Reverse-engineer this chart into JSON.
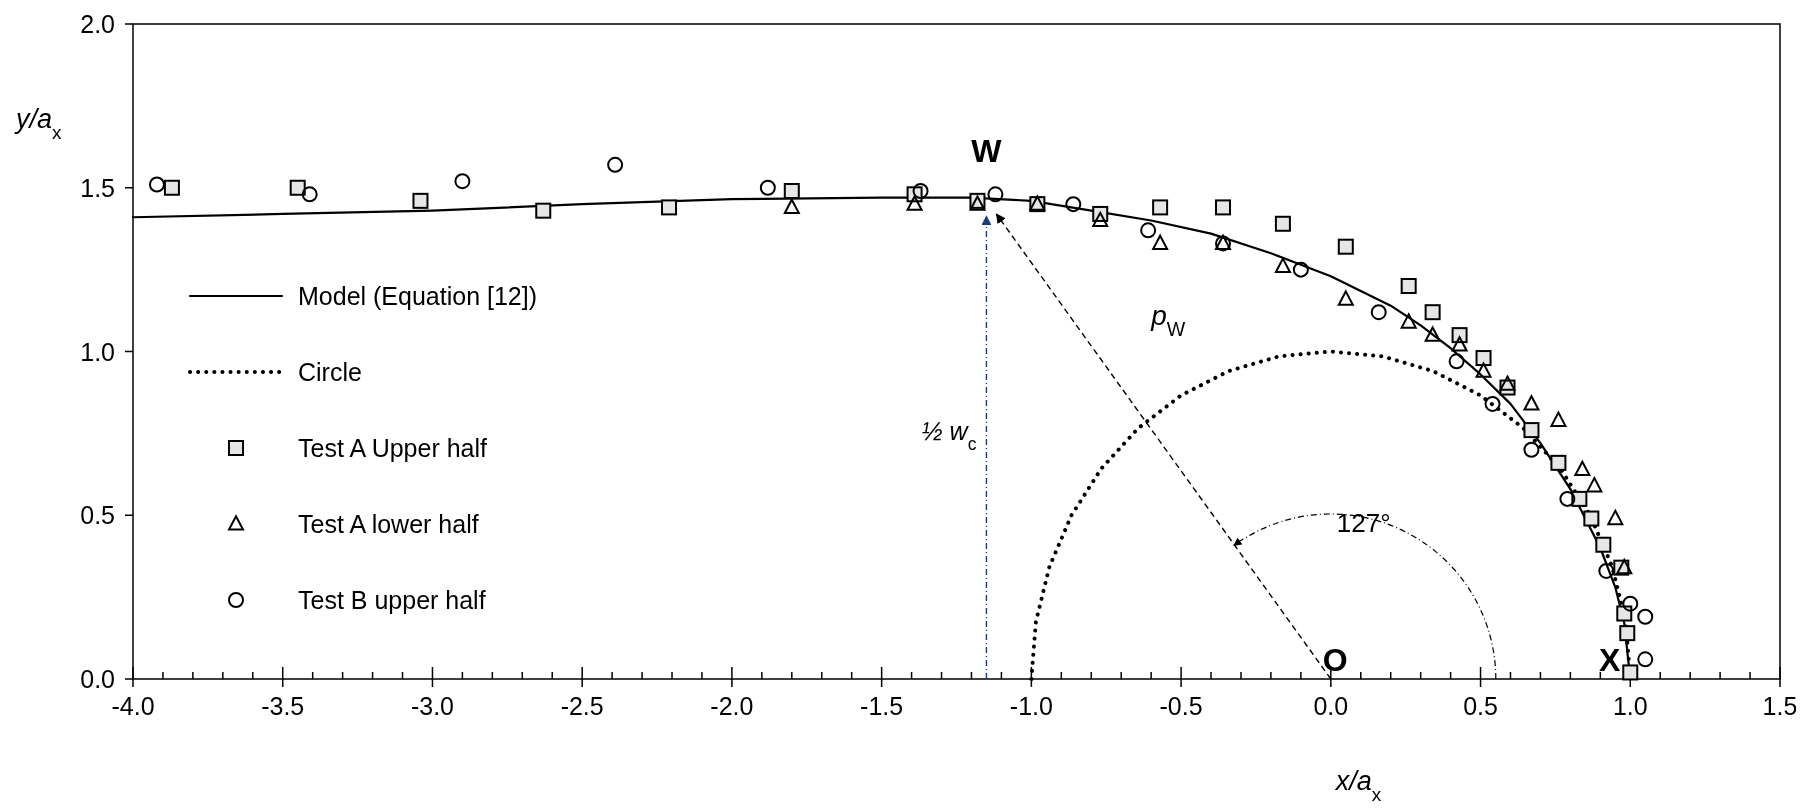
{
  "chart_data": {
    "type": "scatter",
    "xlabel": "x/a$_{x}$",
    "ylabel": "y/a$_{x}$",
    "xlim": [
      -4,
      1.5
    ],
    "ylim": [
      0,
      2
    ],
    "xticks": [
      {
        "value": -4,
        "label": "-4.0"
      },
      {
        "value": -3.9,
        "label": null
      },
      {
        "value": -3.8,
        "label": null
      },
      {
        "value": -3.7,
        "label": null
      },
      {
        "value": -3.6,
        "label": null
      },
      {
        "value": -3.5,
        "label": "-3.5"
      },
      {
        "value": -3.4,
        "label": null
      },
      {
        "value": -3.3,
        "label": null
      },
      {
        "value": -3.2,
        "label": null
      },
      {
        "value": -3.1,
        "label": null
      },
      {
        "value": -3,
        "label": "-3.0"
      },
      {
        "value": -2.9,
        "label": null
      },
      {
        "value": -2.8,
        "label": null
      },
      {
        "value": -2.7,
        "label": null
      },
      {
        "value": -2.6,
        "label": null
      },
      {
        "value": -2.5,
        "label": "-2.5"
      },
      {
        "value": -2.4,
        "label": null
      },
      {
        "value": -2.3,
        "label": null
      },
      {
        "value": -2.2,
        "label": null
      },
      {
        "value": -2.1,
        "label": null
      },
      {
        "value": -2,
        "label": "-2.0"
      },
      {
        "value": -1.9,
        "label": null
      },
      {
        "value": -1.8,
        "label": null
      },
      {
        "value": -1.7,
        "label": null
      },
      {
        "value": -1.6,
        "label": null
      },
      {
        "value": -1.5,
        "label": "-1.5"
      },
      {
        "value": -1.4,
        "label": null
      },
      {
        "value": -1.3,
        "label": null
      },
      {
        "value": -1.2,
        "label": null
      },
      {
        "value": -1.1,
        "label": null
      },
      {
        "value": -1,
        "label": "-1.0"
      },
      {
        "value": -0.9,
        "label": null
      },
      {
        "value": -0.8,
        "label": null
      },
      {
        "value": -0.7,
        "label": null
      },
      {
        "value": -0.6,
        "label": null
      },
      {
        "value": -0.5,
        "label": "-0.5"
      },
      {
        "value": -0.4,
        "label": null
      },
      {
        "value": -0.3,
        "label": null
      },
      {
        "value": -0.2,
        "label": null
      },
      {
        "value": -0.1,
        "label": null
      },
      {
        "value": 0,
        "label": "0.0"
      },
      {
        "value": 0.1,
        "label": null
      },
      {
        "value": 0.2,
        "label": null
      },
      {
        "value": 0.3,
        "label": null
      },
      {
        "value": 0.4,
        "label": null
      },
      {
        "value": 0.5,
        "label": "0.5"
      },
      {
        "value": 0.6,
        "label": null
      },
      {
        "value": 0.7,
        "label": null
      },
      {
        "value": 0.8,
        "label": null
      },
      {
        "value": 0.9,
        "label": null
      },
      {
        "value": 1,
        "label": "1.0"
      },
      {
        "value": 1.1,
        "label": null
      },
      {
        "value": 1.2,
        "label": null
      },
      {
        "value": 1.3,
        "label": null
      },
      {
        "value": 1.4,
        "label": null
      },
      {
        "value": 1.5,
        "label": "1.5"
      }
    ],
    "yticks": [
      {
        "value": 0,
        "label": "0.0"
      },
      {
        "value": 0.5,
        "label": "0.5"
      },
      {
        "value": 1,
        "label": "1.0"
      },
      {
        "value": 1.5,
        "label": "1.5"
      },
      {
        "value": 2,
        "label": "2.0"
      }
    ],
    "grid": false,
    "legend": "left",
    "series": [
      {
        "name": "Model (Equation [12])",
        "type": "line",
        "line_style": "solid",
        "marker": "none",
        "color": "#000000",
        "x": [
          -4,
          -3.5,
          -3,
          -2.5,
          -2,
          -1.5,
          -1.2,
          -1,
          -0.8,
          -0.6,
          -0.4,
          -0.2,
          0,
          0.2,
          0.3,
          0.4,
          0.5,
          0.6,
          0.7,
          0.8,
          0.9,
          0.95,
          0.98,
          1
        ],
        "values": [
          1.41,
          1.42,
          1.43,
          1.45,
          1.465,
          1.47,
          1.47,
          1.46,
          1.43,
          1.4,
          1.36,
          1.3,
          1.23,
          1.14,
          1.08,
          1.01,
          0.93,
          0.84,
          0.72,
          0.58,
          0.4,
          0.28,
          0.17,
          0
        ]
      },
      {
        "name": "Circle",
        "type": "line",
        "line_style": "dotted",
        "marker": "none",
        "color": "#000000",
        "x": [
          -1,
          -0.985,
          -0.94,
          -0.866,
          -0.766,
          -0.643,
          -0.5,
          -0.342,
          -0.174,
          0,
          0.174,
          0.342,
          0.5,
          0.643,
          0.766,
          0.866,
          0.94,
          0.985,
          1
        ],
        "values": [
          0,
          0.174,
          0.342,
          0.5,
          0.643,
          0.766,
          0.866,
          0.94,
          0.985,
          1,
          0.985,
          0.94,
          0.866,
          0.766,
          0.643,
          0.5,
          0.342,
          0.174,
          0
        ]
      },
      {
        "name": "Test A Upper half",
        "marker": "square",
        "color": "#000000",
        "x": [
          -3.87,
          -3.45,
          -3.04,
          -2.63,
          -2.21,
          -1.8,
          -1.39,
          -1.18,
          -0.98,
          -0.77,
          -0.57,
          -0.36,
          -0.16,
          0.05,
          0.26,
          0.34,
          0.43,
          0.51,
          0.59,
          0.67,
          0.76,
          0.83,
          0.87,
          0.91,
          0.97,
          0.98,
          0.99,
          1
        ],
        "values": [
          1.5,
          1.5,
          1.46,
          1.43,
          1.44,
          1.49,
          1.48,
          1.46,
          1.45,
          1.42,
          1.44,
          1.44,
          1.39,
          1.32,
          1.2,
          1.12,
          1.05,
          0.98,
          0.89,
          0.76,
          0.66,
          0.55,
          0.49,
          0.41,
          0.34,
          0.2,
          0.14,
          0.02
        ]
      },
      {
        "name": "Test A lower half",
        "marker": "triangle",
        "color": "#000000",
        "x": [
          -1.8,
          -1.39,
          -1.18,
          -0.98,
          -0.77,
          -0.57,
          -0.36,
          -0.16,
          0.05,
          0.26,
          0.34,
          0.43,
          0.51,
          0.59,
          0.67,
          0.76,
          0.84,
          0.88,
          0.95,
          0.98
        ],
        "values": [
          1.44,
          1.45,
          1.45,
          1.45,
          1.4,
          1.33,
          1.33,
          1.26,
          1.16,
          1.09,
          1.05,
          1.02,
          0.94,
          0.9,
          0.84,
          0.79,
          0.64,
          0.59,
          0.49,
          0.34
        ]
      },
      {
        "name": "Test B upper half",
        "marker": "circle",
        "color": "#000000",
        "x": [
          -3.92,
          -3.41,
          -2.9,
          -2.39,
          -1.88,
          -1.37,
          -1.12,
          -0.86,
          -0.61,
          -0.36,
          -0.1,
          0.16,
          0.42,
          0.54,
          0.67,
          0.79,
          0.92,
          1,
          1.05,
          1.05
        ],
        "values": [
          1.51,
          1.48,
          1.52,
          1.57,
          1.5,
          1.49,
          1.48,
          1.45,
          1.37,
          1.33,
          1.25,
          1.12,
          0.97,
          0.84,
          0.7,
          0.55,
          0.33,
          0.23,
          0.19,
          0.06
        ]
      }
    ],
    "annotations": [
      {
        "text": "W",
        "x": -1.15,
        "y": 1.45
      },
      "O",
      {
        "text": "X",
        "x": 1,
        "y": 0
      },
      "p$_{W}$",
      "½  w$_{c}$",
      "127°"
    ]
  }
}
